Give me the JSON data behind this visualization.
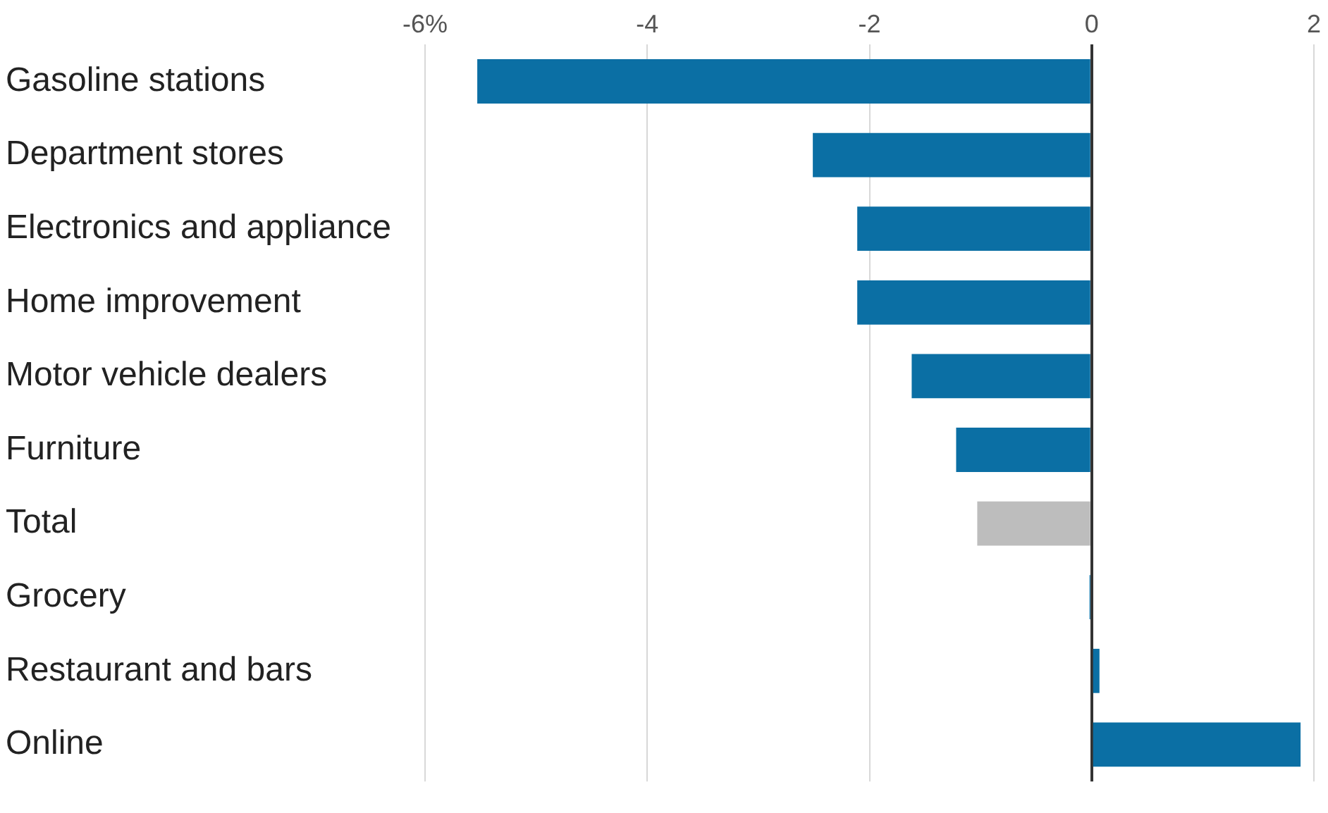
{
  "chart_data": {
    "type": "bar",
    "orientation": "horizontal",
    "categories": [
      "Gasoline stations",
      "Department stores",
      "Electronics and appliance",
      "Home improvement",
      "Motor vehicle dealers",
      "Furniture",
      "Total",
      "Grocery",
      "Restaurant and bars",
      "Online"
    ],
    "values": [
      -5.53,
      -2.51,
      -2.11,
      -2.11,
      -1.62,
      -1.22,
      -1.03,
      -0.02,
      0.07,
      1.88
    ],
    "colors": [
      "#0b6fa4",
      "#0b6fa4",
      "#0b6fa4",
      "#0b6fa4",
      "#0b6fa4",
      "#0b6fa4",
      "#bdbdbd",
      "#0b6fa4",
      "#0b6fa4",
      "#0b6fa4"
    ],
    "xlim": [
      -6,
      2
    ],
    "xticks": [
      {
        "value": -6,
        "label": "-6%"
      },
      -4,
      -2,
      0,
      2
    ],
    "grid": "x",
    "legend": false
  }
}
